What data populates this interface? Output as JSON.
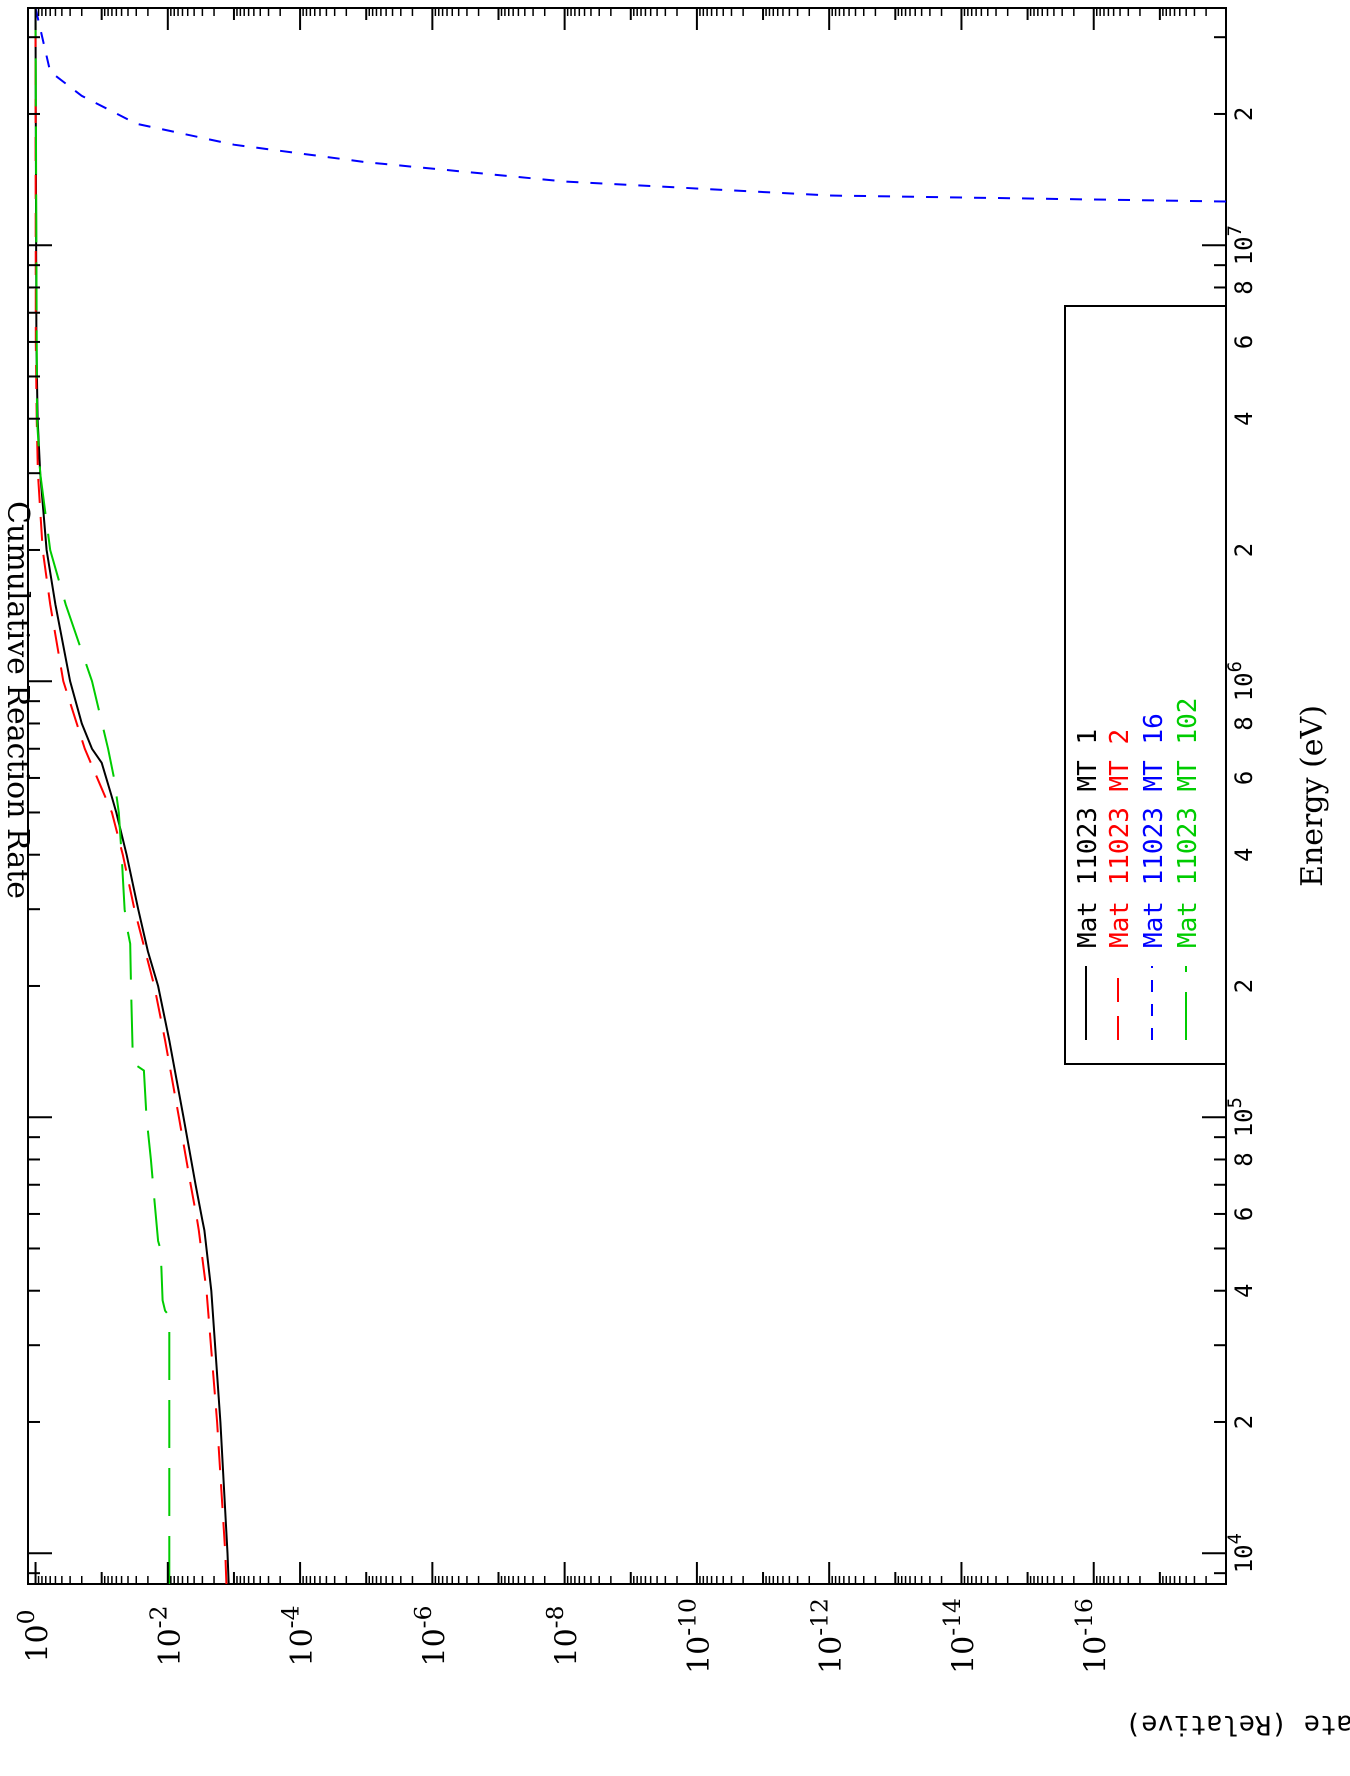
{
  "chart_data": {
    "type": "line",
    "orientation": "rotated-90-clockwise",
    "title": "Cumulative Reaction Rate",
    "xlabel": "Energy  (eV)",
    "ylabel": "Reaction Rate (Relative)",
    "xscale": "log",
    "yscale": "log",
    "xlim": [
      8500,
      35000000
    ],
    "ylim": [
      1e-18,
      1.3
    ],
    "grid": false,
    "legend_position": "top-right",
    "x_ticks": [
      {
        "value": 10000,
        "label": "10",
        "exp": "4"
      },
      {
        "value": 20000,
        "label": "2"
      },
      {
        "value": 40000,
        "label": "4"
      },
      {
        "value": 60000,
        "label": "6"
      },
      {
        "value": 80000,
        "label": "8"
      },
      {
        "value": 100000,
        "label": "10",
        "exp": "5"
      },
      {
        "value": 200000,
        "label": "2"
      },
      {
        "value": 400000,
        "label": "4"
      },
      {
        "value": 600000,
        "label": "6"
      },
      {
        "value": 800000,
        "label": "8"
      },
      {
        "value": 1000000,
        "label": "10",
        "exp": "6"
      },
      {
        "value": 2000000,
        "label": "2"
      },
      {
        "value": 4000000,
        "label": "4"
      },
      {
        "value": 6000000,
        "label": "6"
      },
      {
        "value": 8000000,
        "label": "8"
      },
      {
        "value": 10000000,
        "label": "10",
        "exp": "7"
      },
      {
        "value": 20000000,
        "label": "2"
      }
    ],
    "y_ticks": [
      {
        "value": 1,
        "label": "10",
        "exp": "0"
      },
      {
        "value": 0.01,
        "label": "10",
        "exp": "-2"
      },
      {
        "value": 0.0001,
        "label": "10",
        "exp": "-4"
      },
      {
        "value": 1e-06,
        "label": "10",
        "exp": "-6"
      },
      {
        "value": 1e-08,
        "label": "10",
        "exp": "-8"
      },
      {
        "value": 1e-10,
        "label": "10",
        "exp": "-10"
      },
      {
        "value": 1e-12,
        "label": "10",
        "exp": "-12"
      },
      {
        "value": 1e-14,
        "label": "10",
        "exp": "-14"
      },
      {
        "value": 1e-16,
        "label": "10",
        "exp": "-16"
      }
    ],
    "series": [
      {
        "mat_label": "Mat",
        "mat": "11023",
        "mt_label": "MT",
        "mt": "1",
        "color": "#000000",
        "dash": "",
        "x": [
          8500,
          10000,
          20000,
          40000,
          55000,
          58000,
          70000,
          100000,
          150000,
          200000,
          240000,
          300000,
          400000,
          500000,
          550000,
          650000,
          700000,
          800000,
          1000000,
          1500000,
          2000000,
          3000000,
          4000000,
          6000000,
          35000000
        ],
        "y": [
          0.0012,
          0.00125,
          0.0016,
          0.0022,
          0.0028,
          0.003,
          0.0038,
          0.0058,
          0.0095,
          0.014,
          0.02,
          0.028,
          0.042,
          0.06,
          0.072,
          0.1,
          0.14,
          0.2,
          0.3,
          0.5,
          0.68,
          0.85,
          0.93,
          0.97,
          1.0
        ]
      },
      {
        "mat_label": "Mat",
        "mat": "11023",
        "mt_label": "MT",
        "mt": "2",
        "color": "#ff0000",
        "dash": "24 14",
        "x": [
          8500,
          10000,
          20000,
          40000,
          55000,
          58000,
          70000,
          100000,
          150000,
          200000,
          300000,
          400000,
          500000,
          700000,
          1000000,
          1500000,
          2000000,
          3000000,
          4000000,
          6000000,
          35000000
        ],
        "y": [
          0.0013,
          0.00135,
          0.0018,
          0.0026,
          0.0034,
          0.0036,
          0.0045,
          0.0068,
          0.011,
          0.016,
          0.032,
          0.048,
          0.07,
          0.18,
          0.38,
          0.6,
          0.78,
          0.92,
          0.96,
          0.99,
          1.0
        ]
      },
      {
        "mat_label": "Mat",
        "mat": "11023",
        "mt_label": "MT",
        "mt": "16",
        "color": "#0000ff",
        "dash": "12 12",
        "x": [
          12600000,
          13000000,
          14000000,
          15500000,
          17000000,
          19000000,
          22000000,
          25000000,
          35000000
        ],
        "y": [
          1e-18,
          1e-12,
          1e-08,
          1e-05,
          0.001,
          0.03,
          0.2,
          0.6,
          1.0
        ]
      },
      {
        "mat_label": "Mat",
        "mat": "11023",
        "mt_label": "MT",
        "mt": "102",
        "color": "#00cc00",
        "dash": "48 20",
        "x": [
          8500,
          35000,
          36000,
          38000,
          45000,
          50000,
          52000,
          65000,
          80000,
          100000,
          128000,
          132000,
          140000,
          200000,
          250000,
          270000,
          300000,
          400000,
          500000,
          600000,
          700000,
          1000000,
          1500000,
          2000000,
          3000000,
          4000000,
          35000000
        ],
        "y": [
          0.0095,
          0.0095,
          0.011,
          0.012,
          0.0125,
          0.013,
          0.014,
          0.016,
          0.018,
          0.021,
          0.023,
          0.031,
          0.034,
          0.036,
          0.037,
          0.041,
          0.045,
          0.05,
          0.055,
          0.065,
          0.08,
          0.14,
          0.35,
          0.6,
          0.85,
          0.95,
          1.0
        ]
      }
    ]
  }
}
